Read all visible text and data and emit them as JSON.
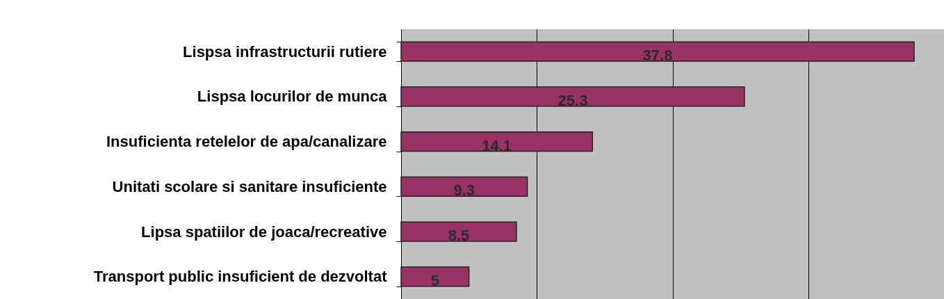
{
  "chart_data": {
    "type": "bar",
    "orientation": "horizontal",
    "categories": [
      "Lispsa infrastructurii rutiere",
      "Lispsa locurilor de munca",
      "Insuficienta retelelor de apa/canalizare",
      "Unitati scolare si sanitare insuficiente",
      "Lipsa spatiilor de joaca/recreative",
      "Transport public insuficient de dezvoltat"
    ],
    "values": [
      37.8,
      25.3,
      14.1,
      9.3,
      8.5,
      5
    ],
    "color": "#993366",
    "data_labels": true,
    "grid": "x",
    "tick_labels": "y",
    "xlim": [
      0,
      40
    ],
    "xticks": [
      {
        "value": 0,
        "label": null
      },
      {
        "value": 10,
        "label": null
      },
      {
        "value": 20,
        "label": null
      },
      {
        "value": 30,
        "label": null
      },
      {
        "value": 40,
        "label": null
      }
    ]
  }
}
